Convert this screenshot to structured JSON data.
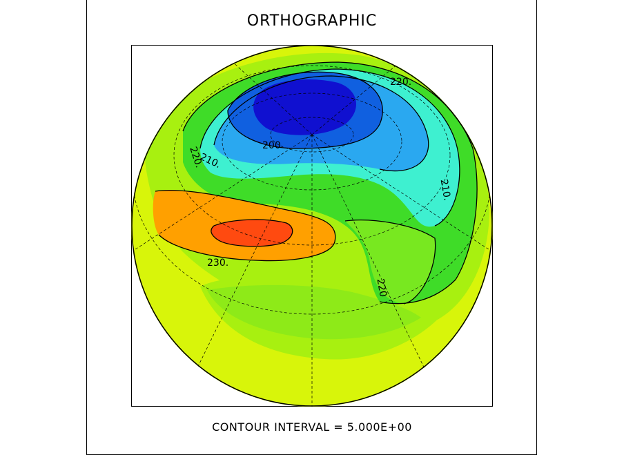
{
  "title": "ORTHOGRAPHIC",
  "caption": "CONTOUR INTERVAL = 5.000E+00",
  "projection": "orthographic",
  "contour_interval": 5.0,
  "contour_labels": [
    "220.",
    "200",
    "220.",
    "210.",
    "210.",
    "230.",
    "220",
    "210."
  ],
  "colors": {
    "outer": "#d8f50a",
    "yellow_green": "#a8f010",
    "green": "#3fdc28",
    "light_green": "#78e820",
    "cyan": "#3ef0d0",
    "light_blue": "#2aa8f0",
    "blue": "#1060e0",
    "dark_blue": "#1010d0",
    "orange": "#ffa000",
    "red_orange": "#ff4a10"
  }
}
